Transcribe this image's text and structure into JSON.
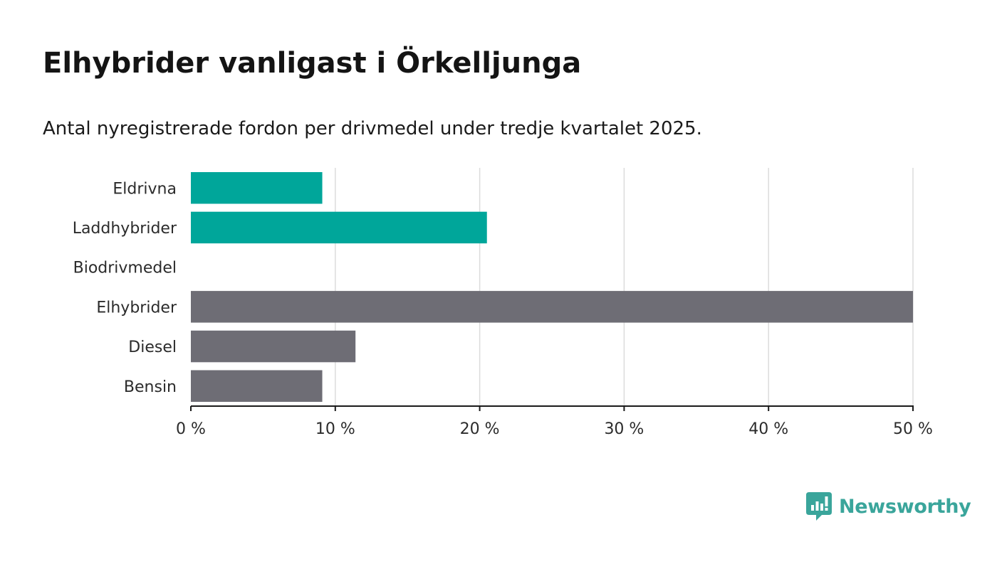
{
  "header": {
    "title": "Elhybrider vanligast i Örkelljunga",
    "subtitle": "Antal nyregistrerade fordon per drivmedel under tredje kvartalet 2025."
  },
  "chart_data": {
    "type": "bar",
    "orientation": "horizontal",
    "categories": [
      "Eldrivna",
      "Laddhybrider",
      "Biodrivmedel",
      "Elhybrider",
      "Diesel",
      "Bensin"
    ],
    "values": [
      9.1,
      20.5,
      0,
      50.0,
      11.4,
      9.1
    ],
    "colors": [
      "#00a69a",
      "#00a69a",
      "#00a69a",
      "#6e6d75",
      "#6e6d75",
      "#6e6d75"
    ],
    "xlim": [
      0,
      50
    ],
    "xticks": [
      0,
      10,
      20,
      30,
      40,
      50
    ],
    "xtick_labels": [
      "0 %",
      "10 %",
      "20 %",
      "30 %",
      "40 %",
      "50 %"
    ],
    "grid": true,
    "xlabel": "",
    "ylabel": ""
  },
  "branding": {
    "name": "Newsworthy",
    "icon": "newsworthy-logo-icon",
    "color": "#3aa59b"
  }
}
